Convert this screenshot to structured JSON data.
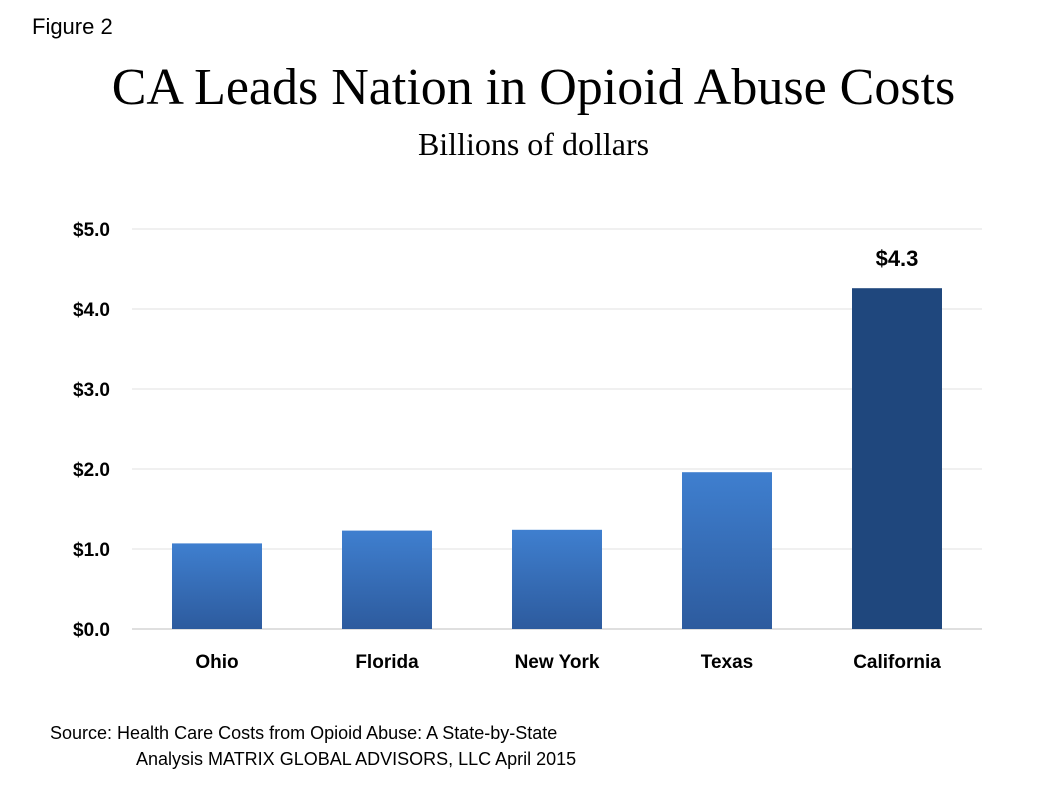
{
  "figure_label": "Figure 2",
  "source": {
    "line1": "Source: Health Care Costs from Opioid Abuse: A State-by-State",
    "line2": "Analysis MATRIX GLOBAL ADVISORS, LLC April 2015"
  },
  "chart_data": {
    "type": "bar",
    "title": "CA Leads Nation in Opioid Abuse Costs",
    "subtitle": "Billions of dollars",
    "xlabel": "",
    "ylabel": "",
    "categories": [
      "Ohio",
      "Florida",
      "New York",
      "Texas",
      "California"
    ],
    "values": [
      1.07,
      1.23,
      1.24,
      1.96,
      4.26
    ],
    "data_labels": [
      "",
      "",
      "",
      "",
      "$4.3"
    ],
    "y_ticks": [
      "$0.0",
      "$1.0",
      "$2.0",
      "$3.0",
      "$4.0",
      "$5.0"
    ],
    "ylim": [
      0,
      5
    ],
    "grid": true,
    "legend": "none",
    "colors": {
      "default_top": "#3f7fcf",
      "default_bottom": "#2d5b9e",
      "highlight": "#1f477d",
      "grid": "#e0e0e0",
      "axis": "#bfbfbf"
    }
  }
}
